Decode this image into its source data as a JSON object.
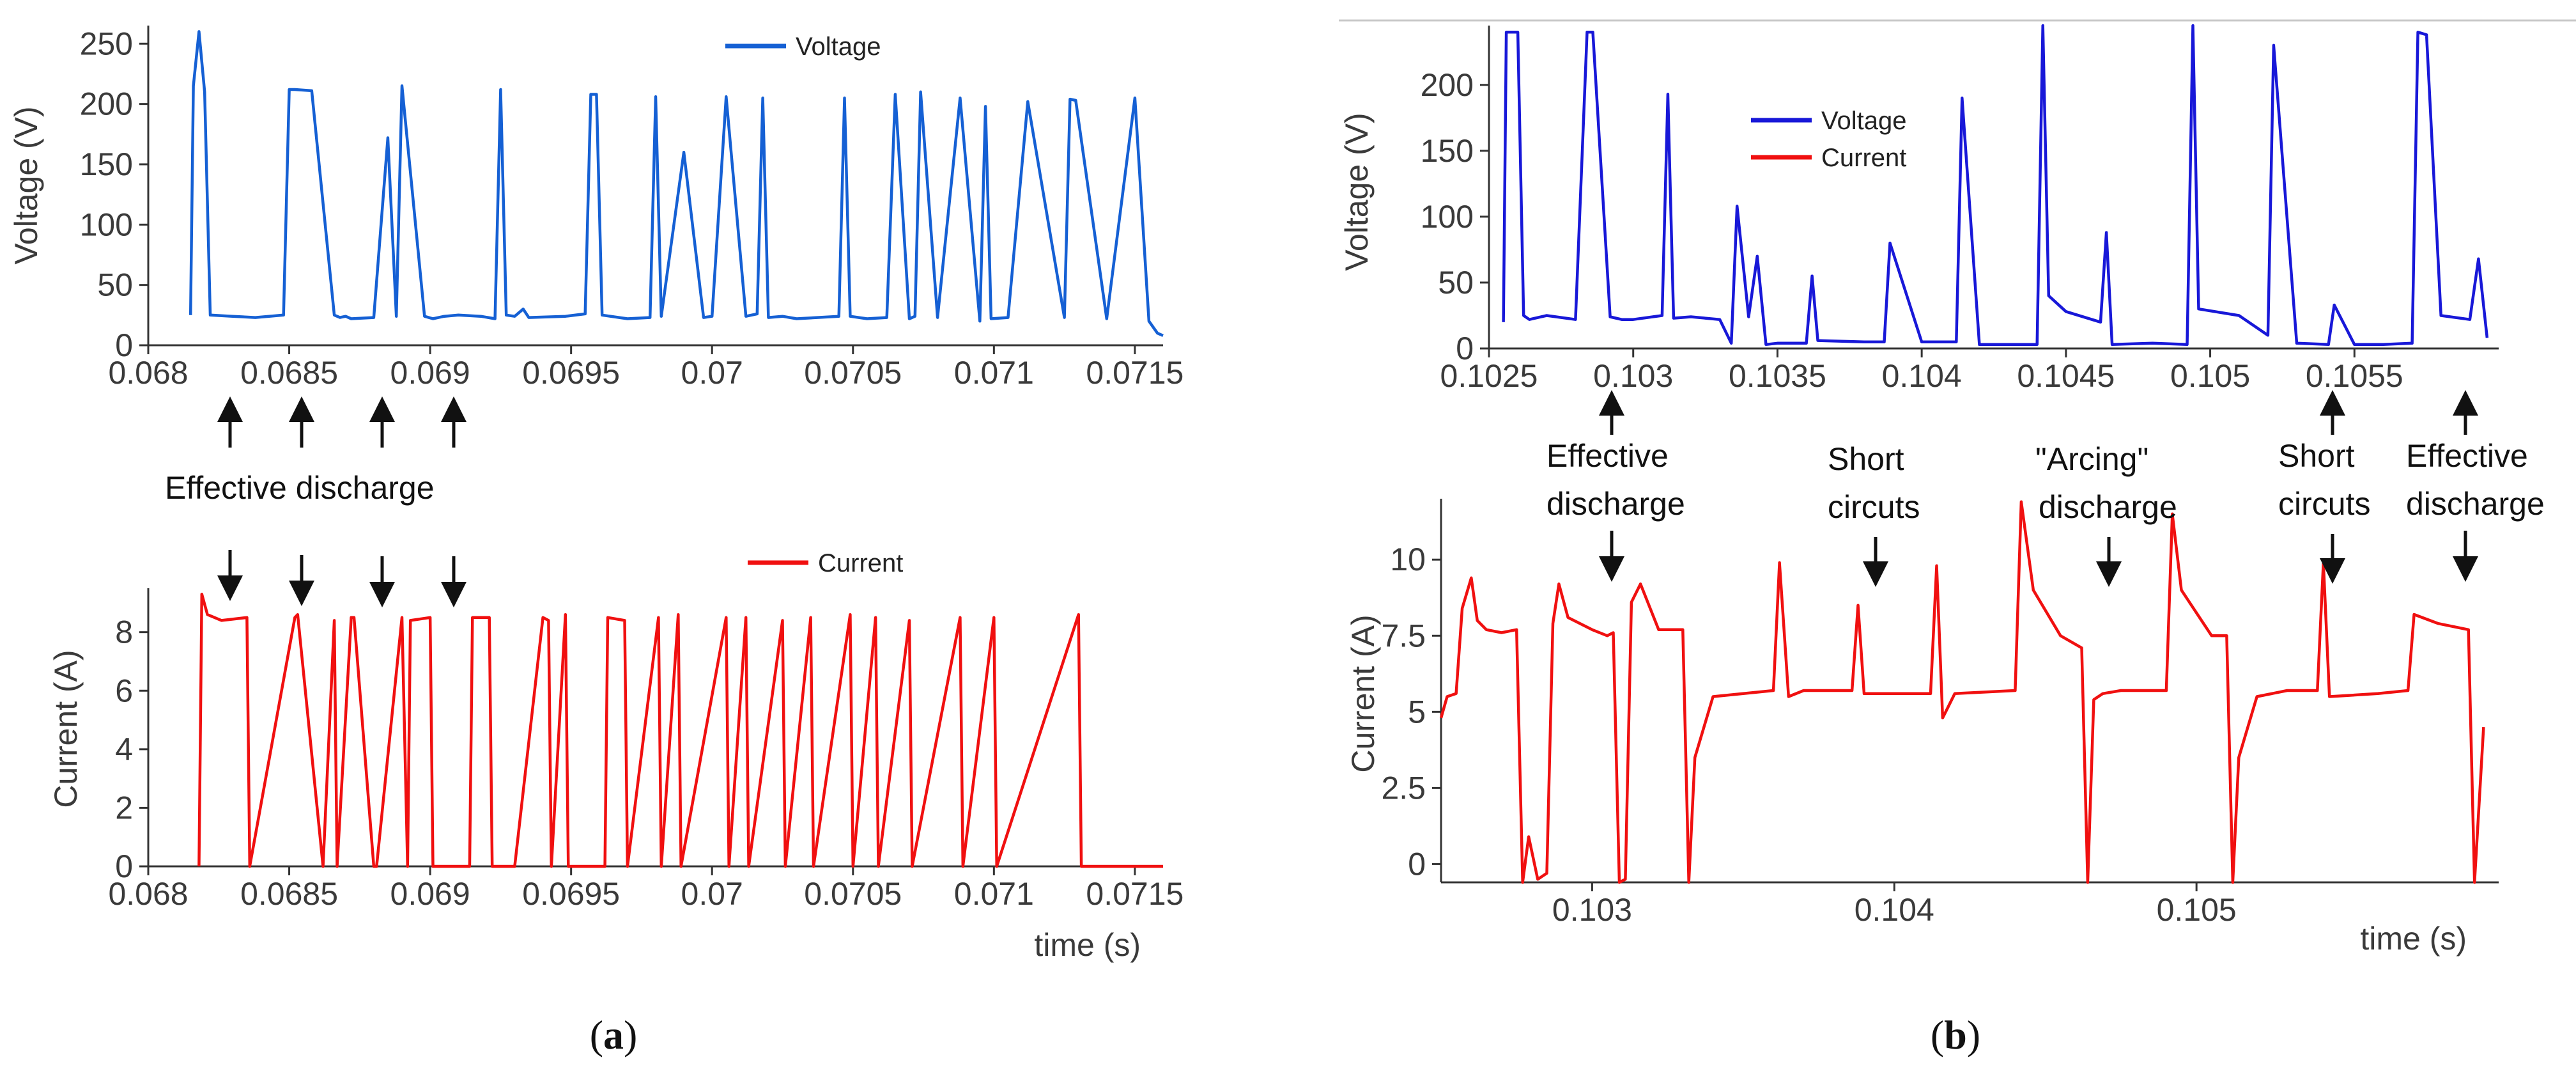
{
  "panels": {
    "a": {
      "label_open": "(",
      "label_letter": "a",
      "label_close": ")"
    },
    "b": {
      "label_open": "(",
      "label_letter": "b",
      "label_close": ")"
    }
  },
  "chart_data": [
    {
      "id": "a_voltage",
      "type": "line",
      "panel": "a",
      "ylabel": "Voltage (V)",
      "xlabel": "",
      "xlim": [
        0.068,
        0.0716
      ],
      "ylim": [
        0,
        265
      ],
      "x_ticks": [
        0.068,
        0.0685,
        0.069,
        0.0695,
        0.07,
        0.0705,
        0.071,
        0.0715
      ],
      "x_tick_labels": [
        "0.068",
        "0.0685",
        "0.069",
        "0.0695",
        "0.07",
        "0.0705",
        "0.071",
        "0.0715"
      ],
      "y_ticks": [
        0,
        50,
        100,
        150,
        200,
        250
      ],
      "y_tick_labels": [
        "0",
        "50",
        "100",
        "150",
        "200",
        "250"
      ],
      "legend": [
        {
          "name": "Voltage",
          "color": "#1560d4"
        }
      ],
      "series": [
        {
          "name": "Voltage",
          "color": "#1560d4",
          "x": [
            0.06815,
            0.06816,
            0.06818,
            0.0682,
            0.06822,
            0.0683,
            0.06838,
            0.06848,
            0.0685,
            0.06852,
            0.06858,
            0.06866,
            0.06868,
            0.0687,
            0.06872,
            0.0688,
            0.06885,
            0.06888,
            0.0689,
            0.06898,
            0.06901,
            0.06903,
            0.06905,
            0.0691,
            0.06918,
            0.06923,
            0.06925,
            0.06927,
            0.0693,
            0.06933,
            0.06935,
            0.06948,
            0.06955,
            0.06957,
            0.06959,
            0.06961,
            0.0697,
            0.06978,
            0.0698,
            0.06982,
            0.0699,
            0.06997,
            0.07,
            0.07005,
            0.07012,
            0.07016,
            0.07018,
            0.0702,
            0.07025,
            0.0703,
            0.07045,
            0.07047,
            0.07049,
            0.07055,
            0.07062,
            0.07065,
            0.0707,
            0.07072,
            0.07074,
            0.0708,
            0.07088,
            0.07095,
            0.07097,
            0.07099,
            0.07105,
            0.07112,
            0.07125,
            0.07127,
            0.07129,
            0.0714,
            0.0715,
            0.07155,
            0.07158,
            0.0716
          ],
          "y": [
            25,
            215,
            260,
            210,
            25,
            24,
            23,
            25,
            212,
            212,
            211,
            25,
            23,
            24,
            22,
            23,
            172,
            24,
            215,
            24,
            22,
            23,
            24,
            25,
            24,
            22,
            212,
            25,
            24,
            30,
            23,
            24,
            26,
            208,
            208,
            25,
            22,
            23,
            206,
            24,
            160,
            23,
            24,
            206,
            24,
            26,
            205,
            23,
            24,
            22,
            24,
            205,
            24,
            22,
            23,
            208,
            22,
            24,
            210,
            23,
            205,
            20,
            198,
            22,
            23,
            202,
            23,
            204,
            203,
            22,
            205,
            20,
            10,
            8
          ]
        }
      ]
    },
    {
      "id": "a_current",
      "type": "line",
      "panel": "a",
      "ylabel": "Current (A)",
      "xlabel": "time (s)",
      "xlim": [
        0.068,
        0.0716
      ],
      "ylim": [
        0,
        9.5
      ],
      "x_ticks": [
        0.068,
        0.0685,
        0.069,
        0.0695,
        0.07,
        0.0705,
        0.071,
        0.0715
      ],
      "x_tick_labels": [
        "0.068",
        "0.0685",
        "0.069",
        "0.0695",
        "0.07",
        "0.0705",
        "0.071",
        "0.0715"
      ],
      "y_ticks": [
        0,
        2,
        4,
        6,
        8
      ],
      "y_tick_labels": [
        "0",
        "2",
        "4",
        "6",
        "8"
      ],
      "legend": [
        {
          "name": "Current",
          "color": "#f01010"
        }
      ],
      "series": [
        {
          "name": "Current",
          "color": "#f01010",
          "x": [
            0.06818,
            0.06819,
            0.06821,
            0.06826,
            0.06835,
            0.06836,
            0.06852,
            0.06853,
            0.06862,
            0.06866,
            0.06867,
            0.06872,
            0.06873,
            0.0688,
            0.06881,
            0.0689,
            0.06892,
            0.06893,
            0.069,
            0.06901,
            0.06904,
            0.06914,
            0.06915,
            0.06921,
            0.06922,
            0.0693,
            0.0694,
            0.06942,
            0.06943,
            0.06948,
            0.06949,
            0.06962,
            0.06963,
            0.06969,
            0.0697,
            0.06981,
            0.06982,
            0.06988,
            0.06989,
            0.07005,
            0.07006,
            0.07012,
            0.07013,
            0.07025,
            0.07026,
            0.07035,
            0.07036,
            0.07049,
            0.0705,
            0.07058,
            0.07059,
            0.0707,
            0.07071,
            0.07088,
            0.07089,
            0.071,
            0.07101,
            0.0713,
            0.07131,
            0.0716
          ],
          "y": [
            0,
            9.3,
            8.6,
            8.4,
            8.5,
            0,
            8.5,
            8.6,
            0,
            8.4,
            0,
            8.5,
            8.5,
            0,
            0,
            8.5,
            0,
            8.4,
            8.5,
            0,
            0,
            0,
            8.5,
            8.5,
            0,
            0,
            8.5,
            8.4,
            0,
            8.6,
            0,
            0,
            8.5,
            8.4,
            0,
            8.5,
            0,
            8.6,
            0,
            8.5,
            0,
            8.5,
            0,
            8.4,
            0,
            8.5,
            0,
            8.6,
            0,
            8.5,
            0,
            8.4,
            0,
            8.5,
            0,
            8.5,
            0,
            8.6,
            0,
            0
          ]
        }
      ]
    },
    {
      "id": "b_voltage",
      "type": "line",
      "panel": "b",
      "ylabel": "Voltage (V)",
      "xlabel": "",
      "xlim": [
        0.1025,
        0.106
      ],
      "ylim": [
        0,
        245
      ],
      "x_ticks": [
        0.1025,
        0.103,
        0.1035,
        0.104,
        0.1045,
        0.105,
        0.1055
      ],
      "x_tick_labels": [
        "0.1025",
        "0.103",
        "0.1035",
        "0.104",
        "0.1045",
        "0.105",
        "0.1055"
      ],
      "y_ticks": [
        0,
        50,
        100,
        150,
        200
      ],
      "y_tick_labels": [
        "0",
        "50",
        "100",
        "150",
        "200"
      ],
      "legend": [
        {
          "name": "Voltage",
          "color": "#1818d8"
        },
        {
          "name": "Current",
          "color": "#f01010"
        }
      ],
      "series": [
        {
          "name": "Voltage",
          "color": "#1818d8",
          "x": [
            0.10255,
            0.10256,
            0.1026,
            0.10262,
            0.10264,
            0.1027,
            0.1028,
            0.10284,
            0.10286,
            0.10292,
            0.10296,
            0.103,
            0.1031,
            0.10312,
            0.10314,
            0.1032,
            0.1033,
            0.10334,
            0.10336,
            0.1034,
            0.10343,
            0.10346,
            0.1035,
            0.1036,
            0.10362,
            0.10364,
            0.1038,
            0.10387,
            0.10389,
            0.104,
            0.10412,
            0.10414,
            0.1042,
            0.1044,
            0.10442,
            0.10444,
            0.1045,
            0.10462,
            0.10464,
            0.10466,
            0.1048,
            0.10492,
            0.10494,
            0.10496,
            0.1051,
            0.1052,
            0.10522,
            0.1053,
            0.10541,
            0.10543,
            0.1055,
            0.1056,
            0.1057,
            0.10572,
            0.10575,
            0.1058,
            0.1059,
            0.10593,
            0.10596
          ],
          "y": [
            20,
            240,
            240,
            25,
            22,
            25,
            22,
            240,
            240,
            24,
            22,
            22,
            25,
            193,
            23,
            24,
            22,
            4,
            108,
            24,
            70,
            3,
            4,
            4,
            55,
            6,
            5,
            5,
            80,
            5,
            5,
            190,
            3,
            3,
            245,
            40,
            28,
            20,
            88,
            3,
            4,
            3,
            245,
            30,
            25,
            10,
            230,
            4,
            3,
            33,
            3,
            3,
            4,
            240,
            238,
            25,
            22,
            68,
            8
          ]
        }
      ]
    },
    {
      "id": "b_current",
      "type": "line",
      "panel": "b",
      "ylabel": "Current (A)",
      "xlabel": "time (s)",
      "xlim": [
        0.1025,
        0.106
      ],
      "ylim": [
        -0.6,
        12
      ],
      "x_ticks": [
        0.103,
        0.104,
        0.105
      ],
      "x_tick_labels": [
        "0.103",
        "0.104",
        "0.105"
      ],
      "y_ticks": [
        0,
        2.5,
        5,
        7.5,
        10
      ],
      "y_tick_labels": [
        "0",
        "2.5",
        "5",
        "7.5",
        "10"
      ],
      "legend": [],
      "series": [
        {
          "name": "Current",
          "color": "#f01010",
          "x": [
            0.1025,
            0.10252,
            0.10255,
            0.10257,
            0.1026,
            0.10262,
            0.10265,
            0.1027,
            0.10275,
            0.10277,
            0.10279,
            0.10282,
            0.10285,
            0.10287,
            0.10289,
            0.10292,
            0.103,
            0.10305,
            0.10307,
            0.10309,
            0.10311,
            0.10313,
            0.10316,
            0.10322,
            0.1033,
            0.10332,
            0.10334,
            0.1034,
            0.1035,
            0.1036,
            0.10362,
            0.10365,
            0.1037,
            0.10386,
            0.10388,
            0.1039,
            0.104,
            0.10412,
            0.10414,
            0.10416,
            0.1042,
            0.1044,
            0.10442,
            0.10446,
            0.10455,
            0.10462,
            0.10464,
            0.10466,
            0.10469,
            0.10475,
            0.1049,
            0.10492,
            0.10495,
            0.10505,
            0.1051,
            0.10512,
            0.10514,
            0.1052,
            0.1053,
            0.1054,
            0.10542,
            0.10544,
            0.1056,
            0.1057,
            0.10572,
            0.1058,
            0.1059,
            0.10592,
            0.10595
          ],
          "y": [
            4.8,
            5.5,
            5.6,
            8.4,
            9.4,
            8.0,
            7.7,
            7.6,
            7.7,
            -0.6,
            0.9,
            -0.5,
            -0.3,
            7.9,
            9.2,
            8.1,
            7.7,
            7.5,
            7.6,
            -0.6,
            -0.5,
            8.6,
            9.2,
            7.7,
            7.7,
            -0.6,
            3.5,
            5.5,
            5.6,
            5.7,
            9.9,
            5.5,
            5.7,
            5.7,
            8.5,
            5.6,
            5.6,
            5.6,
            9.8,
            4.8,
            5.6,
            5.7,
            11.9,
            9.0,
            7.5,
            7.1,
            -0.6,
            5.4,
            5.6,
            5.7,
            5.7,
            11.5,
            9.0,
            7.5,
            7.5,
            -0.6,
            3.5,
            5.5,
            5.7,
            5.7,
            9.9,
            5.5,
            5.6,
            5.7,
            8.2,
            7.9,
            7.7,
            -0.6,
            4.5
          ]
        }
      ]
    }
  ],
  "annotations": {
    "a_effective": "Effective discharge",
    "b_effective1": {
      "line1": "Effective",
      "line2": "discharge"
    },
    "b_short1": {
      "line1": "Short",
      "line2": "circuts"
    },
    "b_arcing": {
      "line1": "\"Arcing\"",
      "line2": "discharge"
    },
    "b_short2": {
      "line1": "Short",
      "line2": "circuts"
    },
    "b_effective2": {
      "line1": "Effective",
      "line2": "discharge"
    }
  }
}
